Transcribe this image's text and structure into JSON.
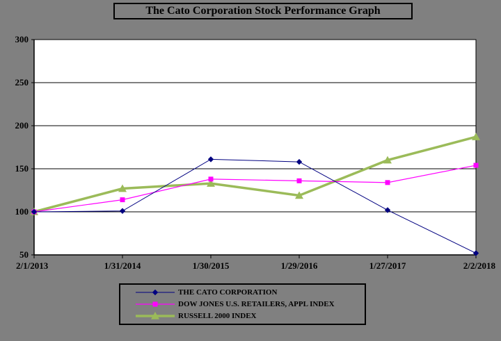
{
  "chart_data": {
    "type": "line",
    "title": "The Cato Corporation  Stock Performance  Graph",
    "categories": [
      "2/1/2013",
      "1/31/2014",
      "1/30/2015",
      "1/29/2016",
      "1/27/2017",
      "2/2/2018"
    ],
    "ylim": [
      50,
      300
    ],
    "yticks": [
      50,
      100,
      150,
      200,
      250,
      300
    ],
    "grid": true,
    "legend_position": "bottom",
    "series": [
      {
        "name": "THE CATO CORPORATION",
        "values": [
          100,
          101,
          161,
          158,
          102,
          52
        ],
        "color": "#000080",
        "marker": "diamond"
      },
      {
        "name": "DOW JONES U.S. RETAILERS, APPL INDEX",
        "values": [
          100,
          114,
          138,
          136,
          134,
          154
        ],
        "color": "#ff00ff",
        "marker": "square"
      },
      {
        "name": "RUSSELL 2000 INDEX",
        "values": [
          100,
          127,
          133,
          119,
          160,
          187
        ],
        "color": "#9bbb59",
        "marker": "triangle"
      }
    ]
  }
}
